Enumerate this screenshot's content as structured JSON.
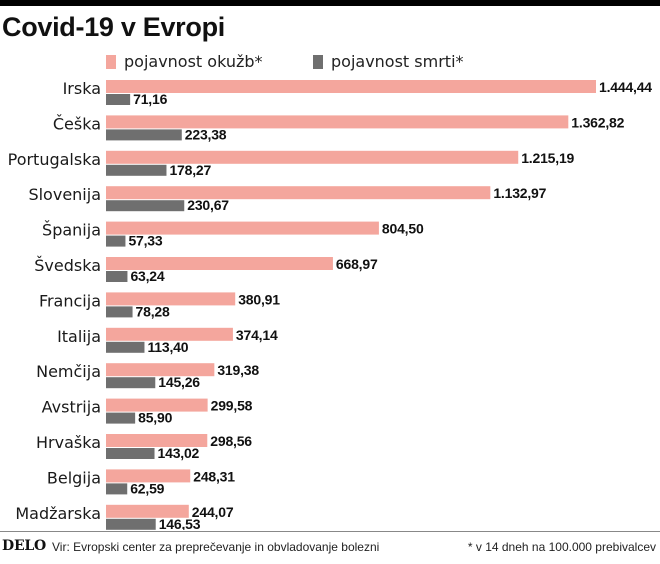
{
  "header": {
    "title": "Covid-19 v Evropi"
  },
  "legend": {
    "items": [
      {
        "label": "pojavnost okužb*",
        "color": "#f4a69d"
      },
      {
        "label": "pojavnost smrti*",
        "color": "#6f6f6f"
      }
    ]
  },
  "footer": {
    "logo": "DELO",
    "source": "Vir: Evropski center za preprečevanje in obvladovanje bolezni",
    "note": "* v 14 dneh na 100.000 prebivalcev"
  },
  "chart_data": {
    "type": "bar",
    "orientation": "horizontal",
    "title": "Covid-19 v Evropi",
    "categories": [
      "Irska",
      "Češka",
      "Portugalska",
      "Slovenija",
      "Španija",
      "Švedska",
      "Francija",
      "Italija",
      "Nemčija",
      "Avstrija",
      "Hrvaška",
      "Belgija",
      "Madžarska"
    ],
    "series": [
      {
        "name": "pojavnost okužb*",
        "color": "#f4a69d",
        "values": [
          1444.44,
          1362.82,
          1215.19,
          1132.97,
          804.5,
          668.97,
          380.91,
          374.14,
          319.38,
          299.58,
          298.56,
          248.31,
          244.07
        ],
        "labels": [
          "1.444,44",
          "1.362,82",
          "1.215,19",
          "1.132,97",
          "804,50",
          "668,97",
          "380,91",
          "374,14",
          "319,38",
          "299,58",
          "298,56",
          "248,31",
          "244,07"
        ]
      },
      {
        "name": "pojavnost smrti*",
        "color": "#6f6f6f",
        "values": [
          71.16,
          223.38,
          178.27,
          230.67,
          57.33,
          63.24,
          78.28,
          113.4,
          145.26,
          85.9,
          143.02,
          62.59,
          146.53
        ],
        "labels": [
          "71,16",
          "223,38",
          "178,27",
          "230,67",
          "57,33",
          "63,24",
          "78,28",
          "113,40",
          "145,26",
          "85,90",
          "143,02",
          "62,59",
          "146,53"
        ]
      }
    ],
    "xlim": [
      0,
      1444.44
    ],
    "grid": false,
    "legend_position": "top"
  }
}
